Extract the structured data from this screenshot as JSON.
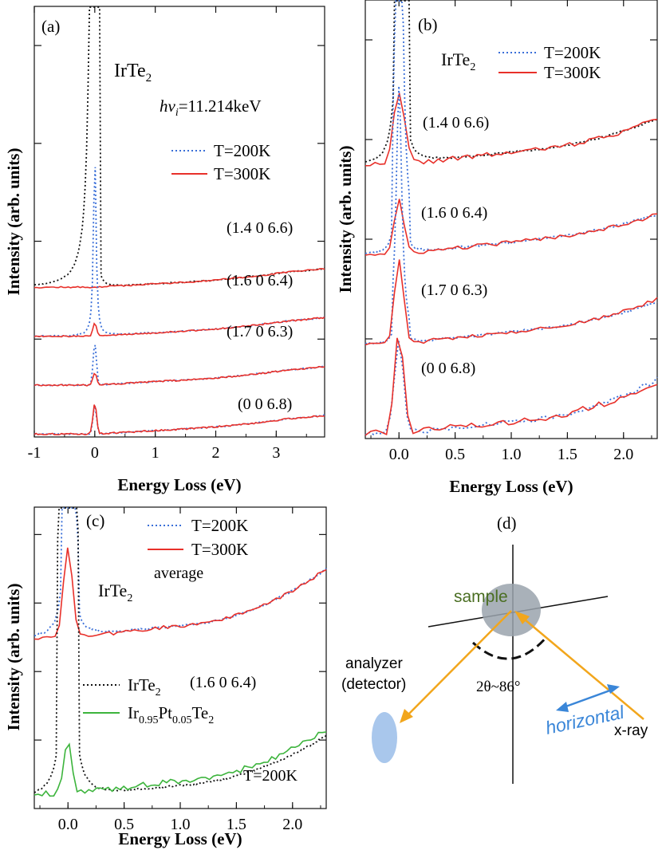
{
  "colors": {
    "red": "#e8302a",
    "blue": "#3a6fd8",
    "black": "#111111",
    "green": "#3cb43c",
    "sample_green": "#4a6e22",
    "orange": "#f2a61c",
    "arrow_blue": "#3a86d8",
    "ellipse_blue": "#a9c7ec",
    "disc_gray": "#9aa3ad"
  },
  "chart_data": [
    {
      "id": "a",
      "type": "line",
      "panel_label": "(a)",
      "compound": "IrTe",
      "compound_sub": "2",
      "energy_prefix": "hν",
      "energy_sub": "i",
      "energy_value": "=11.214keV",
      "xlabel": "Energy Loss (eV)",
      "ylabel": "Intensity (arb. units)",
      "xlim": [
        -1,
        3.8
      ],
      "ylim": [
        0,
        4.4
      ],
      "xticks": [
        -1,
        0,
        1,
        2,
        3
      ],
      "xtick_labels": [
        "-1",
        "0",
        "1",
        "2",
        "3"
      ],
      "legend": [
        {
          "name": "T=200K",
          "style": "dotted",
          "color": "#3a6fd8"
        },
        {
          "name": "T=300K",
          "style": "solid",
          "color": "#e8302a"
        }
      ],
      "offsets": [
        1.5,
        1.0,
        0.5,
        0.0
      ],
      "spectrum_labels": [
        "(1.4 0 6.6)",
        "(1.6 0 6.4)",
        "(1.7 0 6.3)",
        "(0 0 6.8)"
      ]
    },
    {
      "id": "b",
      "type": "line",
      "panel_label": "(b)",
      "compound": "IrTe",
      "compound_sub": "2",
      "xlabel": "Energy Loss (eV)",
      "ylabel": "Intensity (arb. units)",
      "xlim": [
        -0.3,
        2.3
      ],
      "ylim": [
        0,
        4.4
      ],
      "xticks": [
        0,
        0.5,
        1.0,
        1.5,
        2.0
      ],
      "xtick_labels": [
        "0.0",
        "0.5",
        "1.0",
        "1.5",
        "2.0"
      ],
      "legend": [
        {
          "name": "T=200K",
          "style": "dotted",
          "color": "#3a6fd8"
        },
        {
          "name": "T=300K",
          "style": "solid",
          "color": "#e8302a"
        }
      ],
      "offsets": [
        2.7,
        1.8,
        0.9,
        0.0
      ],
      "spectrum_labels": [
        "(1.4 0 6.6)",
        "(1.6 0 6.4)",
        "(1.7 0 6.3)",
        "(0 0 6.8)"
      ]
    },
    {
      "id": "c",
      "type": "line",
      "panel_label": "(c)",
      "xlabel": "Energy Loss (eV)",
      "ylabel": "Intensity (arb. units)",
      "xlim": [
        -0.3,
        2.3
      ],
      "ylim": [
        0,
        3.2
      ],
      "xticks": [
        0,
        0.5,
        1.0,
        1.5,
        2.0
      ],
      "xtick_labels": [
        "0.0",
        "0.5",
        "1.0",
        "1.5",
        "2.0"
      ],
      "legend_top": [
        {
          "name": "T=200K",
          "style": "dotted",
          "color": "#3a6fd8"
        },
        {
          "name": "T=300K",
          "style": "solid",
          "color": "#e8302a"
        }
      ],
      "average_label": "average",
      "compound": "IrTe",
      "compound_sub": "2",
      "legend_bottom_1": {
        "name": "IrTe",
        "sub": "2",
        "style": "dotted",
        "color": "#111111"
      },
      "legend_bottom_2": {
        "parts": [
          "Ir",
          "0.95",
          "Pt",
          "0.05",
          "Te",
          "2"
        ],
        "style": "solid",
        "color": "#3cb43c"
      },
      "q_label": "(1.6 0 6.4)",
      "t_label": "T=200K"
    }
  ],
  "diagram": {
    "panel_label": "(d)",
    "sample_label": "sample",
    "analyzer_label": "analyzer",
    "detector_label": "(detector)",
    "angle_label": "2θ~86°",
    "horizontal_label": "horizontal",
    "xray_label": "x-ray"
  }
}
